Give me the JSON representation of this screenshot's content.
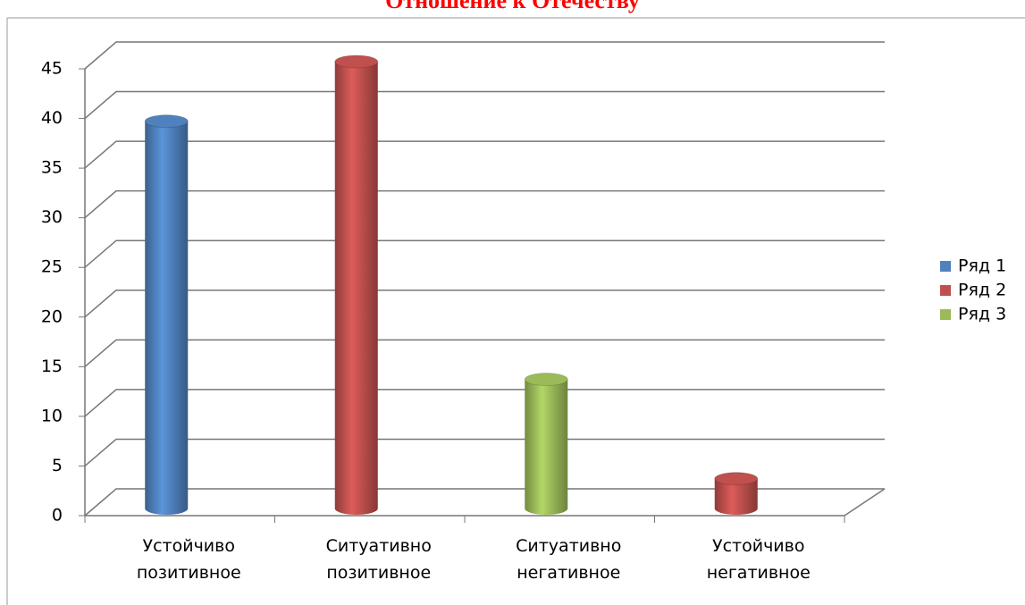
{
  "chart_data": {
    "type": "bar3d",
    "title": "Отношение к Отечеству",
    "categories": [
      "Устойчиво позитивное",
      "Ситуативно позитивное",
      "Ситуативно негативное",
      "Устойчиво негативное"
    ],
    "series": [
      {
        "name": "Ряд 1",
        "color": "#4f81bd",
        "values": [
          39,
          null,
          null,
          null
        ]
      },
      {
        "name": "Ряд 2",
        "color": "#c0504d",
        "values": [
          null,
          45,
          null,
          3
        ]
      },
      {
        "name": "Ряд 3",
        "color": "#9bbb59",
        "values": [
          null,
          null,
          13,
          null
        ]
      }
    ],
    "ylim": [
      0,
      45
    ],
    "yticks": [
      0,
      5,
      10,
      15,
      20,
      25,
      30,
      35,
      40,
      45
    ],
    "grid": true,
    "legend": "right"
  }
}
